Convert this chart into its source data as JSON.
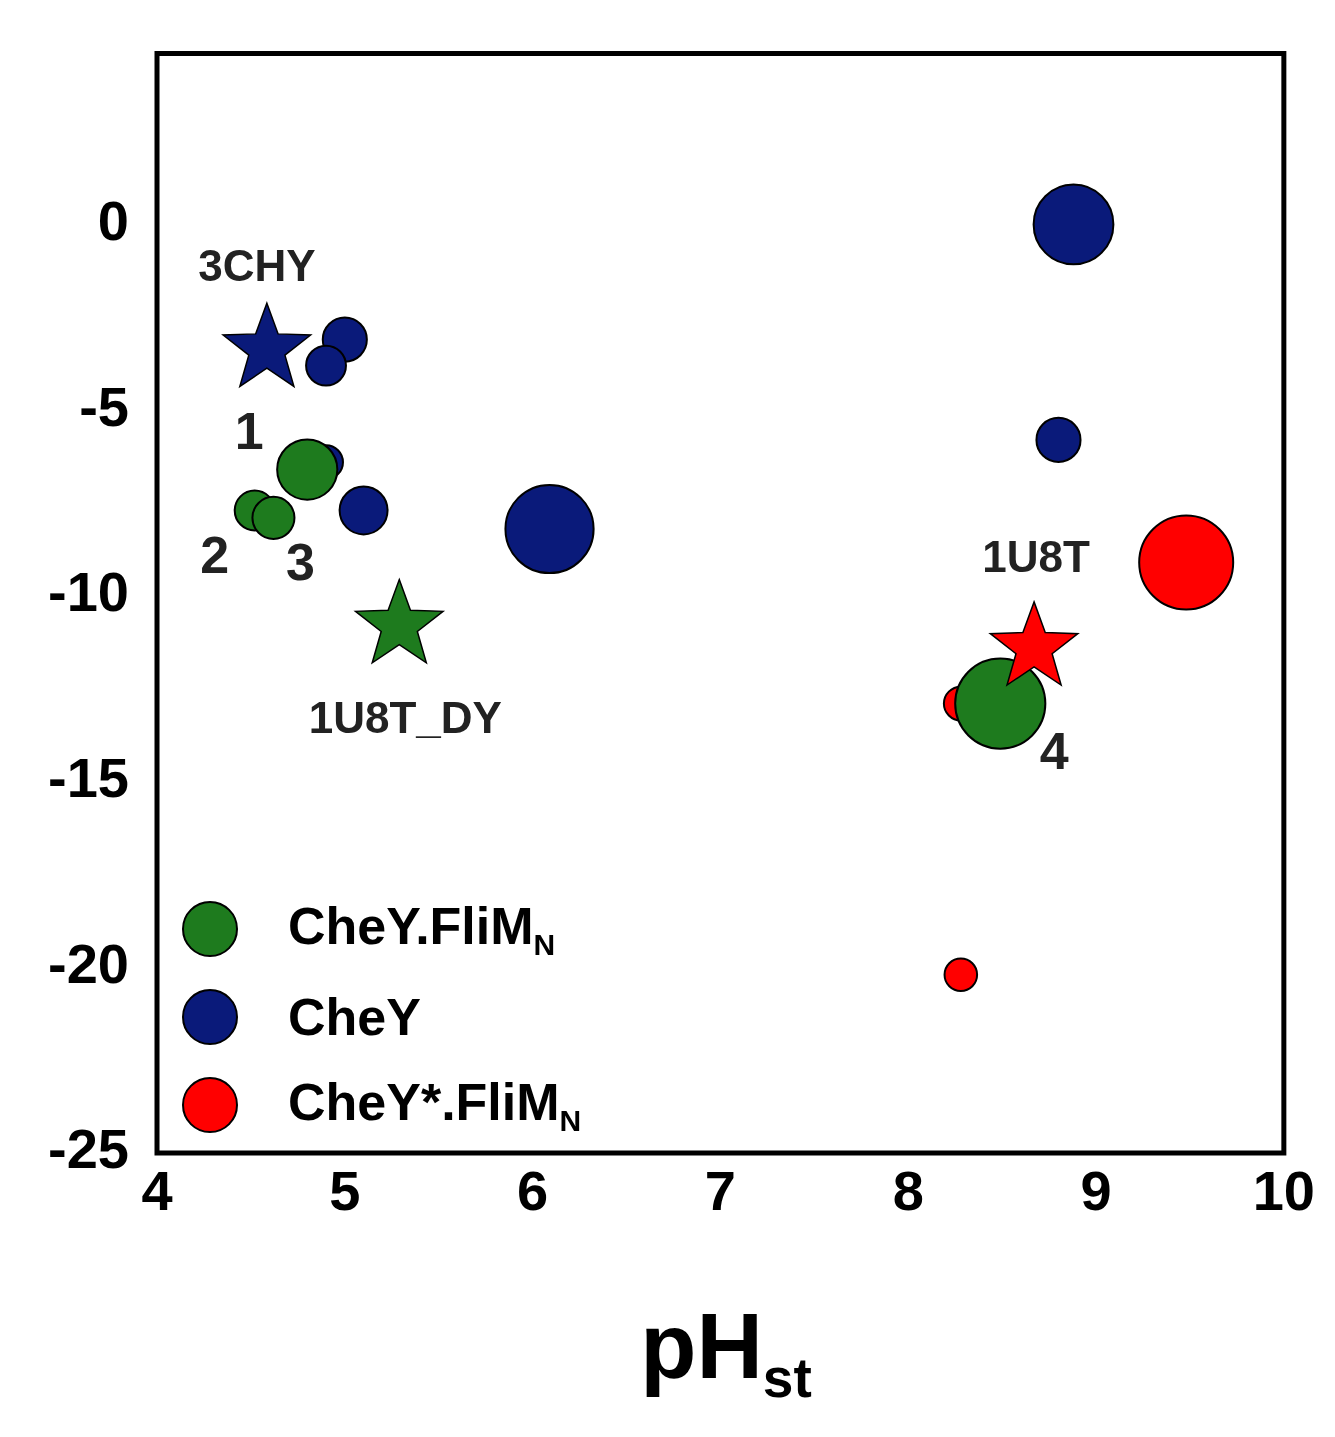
{
  "chart_data": {
    "type": "bubble",
    "xlabel": "pH$_{st}$",
    "xlim": [
      4,
      10
    ],
    "xticks": [
      4,
      5,
      6,
      7,
      8,
      9,
      10
    ],
    "ylim": [
      -25,
      4.6
    ],
    "yticks": [
      -25,
      -20,
      -15,
      -10,
      -5,
      0
    ],
    "grid": false,
    "legend": "bottom left",
    "series": [
      {
        "name": "CheY.FliM$_{N}$",
        "color": "#1e7b1e",
        "x": [
          4.8,
          4.52,
          4.62,
          8.49
        ],
        "values": [
          -6.6,
          -7.7,
          -7.9,
          -12.9
        ],
        "sizes": [
          0.41,
          0.18,
          0.2,
          0.92
        ]
      },
      {
        "name": "CheY",
        "color": "#0a1a7a",
        "x": [
          5.0,
          4.9,
          4.9,
          5.1,
          6.09,
          8.88,
          8.8
        ],
        "values": [
          -3.1,
          -3.8,
          -6.4,
          -7.7,
          -8.2,
          0,
          -5.8
        ],
        "sizes": [
          0.22,
          0.18,
          0.13,
          0.26,
          0.88,
          0.72,
          0.22
        ]
      },
      {
        "name": "CheY*.FliM$_{N}$",
        "color": "#ff0000",
        "x": [
          9.48,
          8.28,
          8.28
        ],
        "values": [
          -9.1,
          -12.9,
          -20.2
        ],
        "sizes": [
          1,
          0.13,
          0.12
        ]
      },
      {
        "type": "scatter",
        "marker": "star",
        "color": "#0a1a7a",
        "x": [
          4.585
        ],
        "values": [
          -3.36
        ]
      },
      {
        "type": "scatter",
        "marker": "star",
        "color": "#1e7b1e",
        "x": [
          5.29
        ],
        "values": [
          -10.8
        ]
      },
      {
        "type": "scatter",
        "marker": "star",
        "color": "#ff0000",
        "x": [
          8.67
        ],
        "values": [
          -11.4
        ]
      }
    ],
    "annotations": [
      {
        "text": "3CHY",
        "x": 4.585,
        "y": -3.36
      },
      {
        "text": "1",
        "x": 4.8,
        "y": -6.6
      },
      {
        "text": "2",
        "x": 4.52,
        "y": -7.7
      },
      {
        "text": "3",
        "x": 4.62,
        "y": -7.9
      },
      {
        "text": "1U8T_DY",
        "x": 5.29,
        "y": -10.8
      },
      {
        "text": "1U8T",
        "x": 8.67,
        "y": -11.4
      },
      {
        "text": "4",
        "x": 8.49,
        "y": -12.9
      }
    ]
  }
}
